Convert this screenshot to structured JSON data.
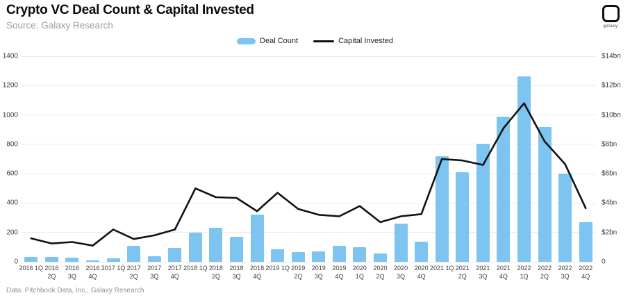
{
  "header": {
    "title": "Crypto VC Deal Count & Capital Invested",
    "source": "Source: Galaxy Research"
  },
  "logo": {
    "caption": "galaxy"
  },
  "legend": [
    {
      "label": "Deal Count",
      "type": "bar",
      "color": "#7dc4f1"
    },
    {
      "label": "Capital Invested",
      "type": "line",
      "color": "#111111"
    }
  ],
  "footer": {
    "credit": "Data: Pitchbook Data, Inc., Galaxy Research"
  },
  "colors": {
    "bar": "#7dc4f1",
    "line": "#111111",
    "gridline": "#e9e9e9",
    "axis_text": "#3c3c3c",
    "subtitle_text": "#9aa0a3"
  },
  "chart_data": {
    "type": "bar",
    "title": "Crypto VC Deal Count & Capital Invested",
    "categories": [
      "2016 1Q",
      "2016 2Q",
      "2016 3Q",
      "2016 4Q",
      "2017 1Q",
      "2017 2Q",
      "2017 3Q",
      "2017 4Q",
      "2018 1Q",
      "2018 2Q",
      "2018 3Q",
      "2018 4Q",
      "2019 1Q",
      "2019 2Q",
      "2019 3Q",
      "2019 4Q",
      "2020 1Q",
      "2020 2Q",
      "2020 3Q",
      "2020 4Q",
      "2021 1Q",
      "2021 2Q",
      "2021 3Q",
      "2021 4Q",
      "2022 1Q",
      "2022 2Q",
      "2022 3Q",
      "2022 4Q"
    ],
    "x_tick_lines": [
      [
        "2016 1Q"
      ],
      [
        "2016",
        "2Q"
      ],
      [
        "2016",
        "3Q"
      ],
      [
        "2016",
        "4Q"
      ],
      [
        "2017 1Q"
      ],
      [
        "2017",
        "2Q"
      ],
      [
        "2017",
        "3Q"
      ],
      [
        "2017",
        "4Q"
      ],
      [
        "2018 1Q"
      ],
      [
        "2018",
        "2Q"
      ],
      [
        "2018",
        "3Q"
      ],
      [
        "2018",
        "4Q"
      ],
      [
        "2019 1Q"
      ],
      [
        "2019",
        "2Q"
      ],
      [
        "2019",
        "3Q"
      ],
      [
        "2019",
        "4Q"
      ],
      [
        "2020",
        "1Q"
      ],
      [
        "2020",
        "2Q"
      ],
      [
        "2020",
        "3Q"
      ],
      [
        "2020",
        "4Q"
      ],
      [
        "2021 1Q"
      ],
      [
        "2021",
        "2Q"
      ],
      [
        "2021",
        "3Q"
      ],
      [
        "2021",
        "4Q"
      ],
      [
        "2022",
        "1Q"
      ],
      [
        "2022",
        "2Q"
      ],
      [
        "2022",
        "3Q"
      ],
      [
        "2022",
        "4Q"
      ]
    ],
    "series": [
      {
        "name": "Deal Count",
        "type": "bar",
        "axis": "left",
        "color": "#7dc4f1",
        "values": [
          35,
          35,
          30,
          8,
          22,
          108,
          38,
          95,
          200,
          230,
          168,
          320,
          85,
          68,
          73,
          110,
          98,
          55,
          258,
          138,
          717,
          610,
          805,
          988,
          1265,
          918,
          600,
          268
        ]
      },
      {
        "name": "Capital Invested",
        "type": "line",
        "axis": "right",
        "color": "#111111",
        "values_bn_usd": [
          1.6,
          1.25,
          1.35,
          1.1,
          2.2,
          1.55,
          1.8,
          2.2,
          5.0,
          4.4,
          4.35,
          3.45,
          4.7,
          3.6,
          3.2,
          3.1,
          3.8,
          2.7,
          3.1,
          3.25,
          7.0,
          6.9,
          6.6,
          9.1,
          10.8,
          8.2,
          6.65,
          3.65
        ]
      }
    ],
    "left_axis": {
      "label": "",
      "ticks": [
        0,
        200,
        400,
        600,
        800,
        1000,
        1200,
        1400
      ],
      "min": 0,
      "max": 1400
    },
    "right_axis": {
      "label": "",
      "tick_labels": [
        "0",
        "$2bn",
        "$4bn",
        "$6bn",
        "$8bn",
        "$10bn",
        "$12bn",
        "$14bn"
      ],
      "min": 0,
      "max_bn": 14
    },
    "grid": true,
    "legend_position": "top-center"
  }
}
